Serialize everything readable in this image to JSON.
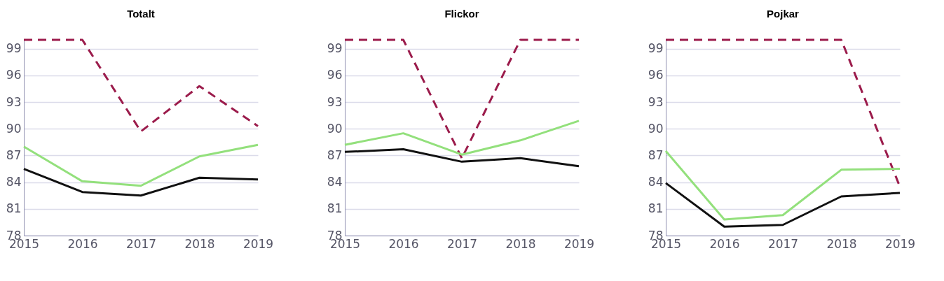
{
  "chart_data": [
    {
      "type": "line",
      "title": "Totalt",
      "categories": [
        "2015",
        "2016",
        "2017",
        "2018",
        "2019"
      ],
      "ylim": [
        78,
        100
      ],
      "yticks": [
        78,
        81,
        84,
        87,
        90,
        93,
        96,
        99
      ],
      "grid": "y",
      "legend": false,
      "marker": "none",
      "series": [
        {
          "color": "#9b1b4b",
          "line_style": "dashed",
          "values": [
            100,
            100,
            89.7,
            94.8,
            90.3
          ]
        },
        {
          "color": "#93e07c",
          "line_style": "solid",
          "values": [
            88.0,
            84.1,
            83.6,
            86.9,
            88.2
          ]
        },
        {
          "color": "#111111",
          "line_style": "solid",
          "values": [
            85.5,
            82.9,
            82.5,
            84.5,
            84.3
          ]
        }
      ]
    },
    {
      "type": "line",
      "title": "Flickor",
      "categories": [
        "2015",
        "2016",
        "2017",
        "2018",
        "2019"
      ],
      "ylim": [
        78,
        100
      ],
      "yticks": [
        78,
        81,
        84,
        87,
        90,
        93,
        96,
        99
      ],
      "grid": "y",
      "legend": false,
      "marker": "none",
      "series": [
        {
          "color": "#9b1b4b",
          "line_style": "dashed",
          "values": [
            100,
            100,
            86.7,
            100,
            100
          ]
        },
        {
          "color": "#93e07c",
          "line_style": "solid",
          "values": [
            88.2,
            89.5,
            87.1,
            88.7,
            90.9
          ]
        },
        {
          "color": "#111111",
          "line_style": "solid",
          "values": [
            87.4,
            87.7,
            86.3,
            86.7,
            85.8
          ]
        }
      ]
    },
    {
      "type": "line",
      "title": "Pojkar",
      "categories": [
        "2015",
        "2016",
        "2017",
        "2018",
        "2019"
      ],
      "ylim": [
        78,
        100
      ],
      "yticks": [
        78,
        81,
        84,
        87,
        90,
        93,
        96,
        99
      ],
      "grid": "y",
      "legend": false,
      "marker": "none",
      "series": [
        {
          "color": "#9b1b4b",
          "line_style": "dashed",
          "values": [
            100,
            100,
            100,
            100,
            83.5
          ]
        },
        {
          "color": "#93e07c",
          "line_style": "solid",
          "values": [
            87.5,
            79.8,
            80.3,
            85.4,
            85.5
          ]
        },
        {
          "color": "#111111",
          "line_style": "solid",
          "values": [
            83.9,
            79.0,
            79.2,
            82.4,
            82.8
          ]
        }
      ]
    }
  ]
}
